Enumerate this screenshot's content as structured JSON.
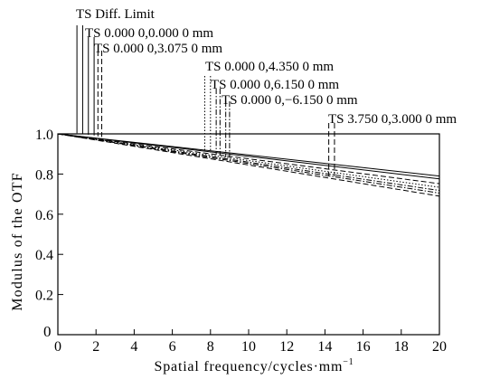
{
  "chart_data": {
    "type": "line",
    "xlabel": "Spatial frequency/cycles·mm",
    "xlabel_sup": "−1",
    "ylabel": "Modulus of the OTF",
    "xlim": [
      0,
      20
    ],
    "ylim": [
      0,
      1.0
    ],
    "x_ticks": [
      0,
      2,
      4,
      6,
      8,
      10,
      12,
      14,
      16,
      18,
      20
    ],
    "x_tick_labels": [
      "0",
      "2",
      "4",
      "6",
      "8",
      "10",
      "12",
      "14",
      "16",
      "18",
      "20"
    ],
    "y_ticks": [
      0.2,
      0.4,
      0.6,
      0.8,
      1.0
    ],
    "y_tick_labels": [
      "0.2",
      "0.4",
      "0.6",
      "0.8",
      "1.0"
    ],
    "origin_label": "0",
    "grid": false,
    "legend_placement": "top, above plot",
    "series": [
      {
        "name": "TS Diff. Limit",
        "style": "solid",
        "x": [
          0,
          20
        ],
        "y": [
          1.0,
          0.79
        ]
      },
      {
        "name": "TS 0.000 0,0.000 0 mm",
        "style": "solid",
        "x": [
          0,
          20
        ],
        "y": [
          1.0,
          0.776
        ]
      },
      {
        "name": "TS 0.000 0,3.075 0 mm",
        "style": "dashed",
        "x": [
          0,
          20
        ],
        "y": [
          1.0,
          0.752
        ]
      },
      {
        "name": "TS 0.000 0,4.350 0 mm",
        "style": "dotted",
        "x": [
          0,
          20
        ],
        "y": [
          1.0,
          0.734
        ]
      },
      {
        "name": "TS 0.000 0,6.150 0 mm",
        "style": "dashdot",
        "x": [
          0,
          20
        ],
        "y": [
          1.0,
          0.718
        ]
      },
      {
        "name": "TS 0.000 0,−6.150 0 mm",
        "style": "dashdot",
        "x": [
          0,
          20
        ],
        "y": [
          1.0,
          0.705
        ]
      },
      {
        "name": "TS 3.750 0,3.000 0 mm",
        "style": "dashed",
        "x": [
          0,
          20
        ],
        "y": [
          1.0,
          0.69
        ]
      }
    ],
    "series_markers_x": [
      [
        1.0,
        1.3
      ],
      [
        1.6,
        1.9
      ],
      [
        2.1,
        2.3
      ],
      [
        7.7,
        8.0
      ],
      [
        8.3,
        8.5
      ],
      [
        8.8,
        9.0
      ],
      [
        14.2,
        14.5
      ]
    ]
  },
  "colors": {
    "line": "#000000",
    "background": "#ffffff"
  }
}
